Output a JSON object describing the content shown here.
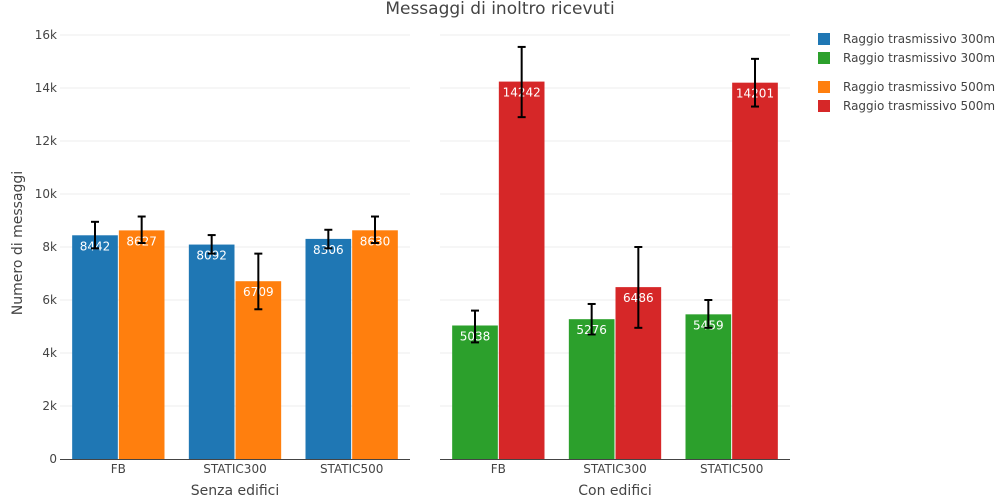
{
  "chart_data": {
    "type": "bar",
    "title": "Messaggi di inoltro ricevuti",
    "ylabel": "Numero di messaggi",
    "ylim": [
      0,
      16000
    ],
    "yticks": [
      {
        "value": 0,
        "label": "0"
      },
      {
        "value": 2000,
        "label": "2k"
      },
      {
        "value": 4000,
        "label": "4k"
      },
      {
        "value": 6000,
        "label": "6k"
      },
      {
        "value": 8000,
        "label": "8k"
      },
      {
        "value": 10000,
        "label": "10k"
      },
      {
        "value": 12000,
        "label": "12k"
      },
      {
        "value": 14000,
        "label": "14k"
      },
      {
        "value": 16000,
        "label": "16k"
      }
    ],
    "grid": true,
    "legend_position": "top-right",
    "legend": [
      {
        "name": "Raggio trasmissivo 300m",
        "color": "#1f77b4"
      },
      {
        "name": "Raggio trasmissivo 300m",
        "color": "#2ca02c"
      },
      {
        "name": "Raggio trasmissivo 500m",
        "color": "#ff7f0e"
      },
      {
        "name": "Raggio trasmissivo 500m",
        "color": "#d62728"
      }
    ],
    "panels": [
      {
        "xlabel": "Senza edifici",
        "categories": [
          "FB",
          "STATIC300",
          "STATIC500"
        ],
        "series": [
          {
            "name": "Raggio trasmissivo 300m",
            "color": "#1f77b4",
            "values": [
              8442,
              8092,
              8306
            ],
            "error_low": [
              7950,
              7750,
              7950
            ],
            "error_high": [
              8950,
              8450,
              8650
            ]
          },
          {
            "name": "Raggio trasmissivo 500m",
            "color": "#ff7f0e",
            "values": [
              8627,
              6709,
              8630
            ],
            "error_low": [
              8150,
              5650,
              8150
            ],
            "error_high": [
              9150,
              7750,
              9150
            ]
          }
        ]
      },
      {
        "xlabel": "Con edifici",
        "categories": [
          "FB",
          "STATIC300",
          "STATIC500"
        ],
        "series": [
          {
            "name": "Raggio trasmissivo 300m",
            "color": "#2ca02c",
            "values": [
              5038,
              5276,
              5459
            ],
            "error_low": [
              4400,
              4700,
              4950
            ],
            "error_high": [
              5600,
              5850,
              6000
            ]
          },
          {
            "name": "Raggio trasmissivo 500m",
            "color": "#d62728",
            "values": [
              14242,
              6486,
              14201
            ],
            "error_low": [
              12900,
              4950,
              13300
            ],
            "error_high": [
              15550,
              8000,
              15100
            ]
          }
        ]
      }
    ]
  }
}
